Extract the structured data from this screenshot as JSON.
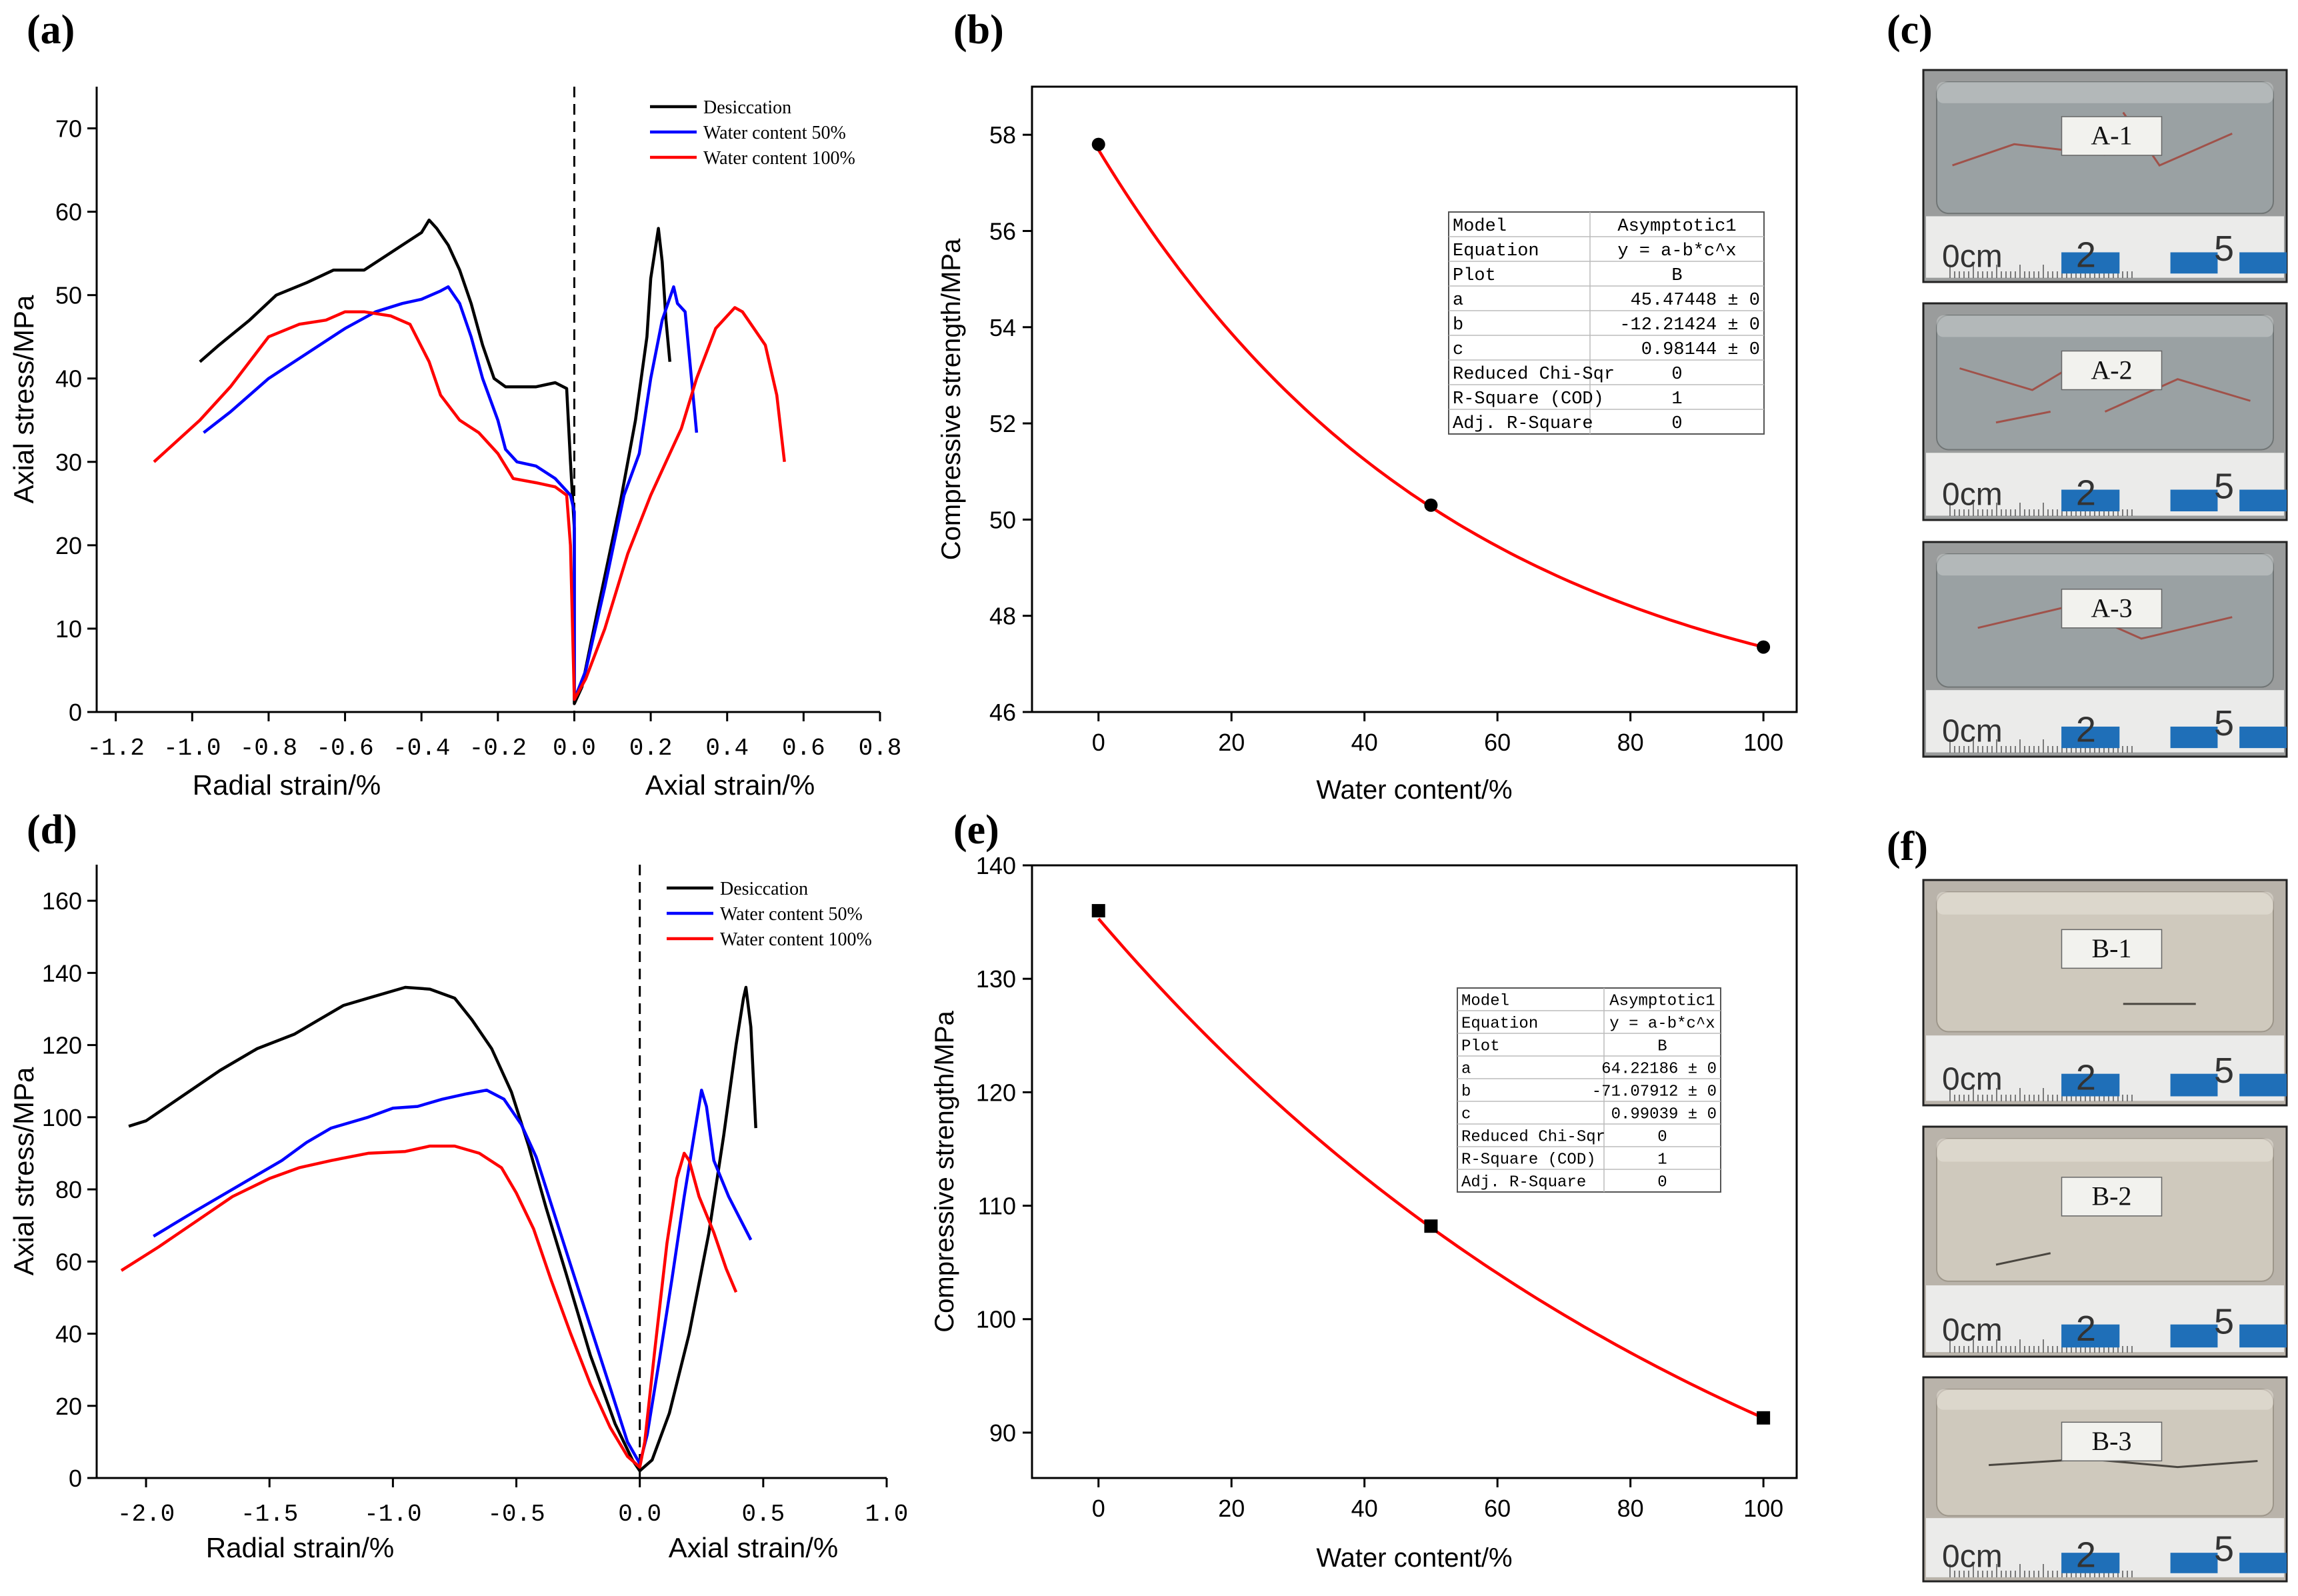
{
  "panels": {
    "a": "(a)",
    "b": "(b)",
    "c": "(c)",
    "d": "(d)",
    "e": "(e)",
    "f": "(f)"
  },
  "colors": {
    "black": "#000000",
    "blue": "#0000ff",
    "red": "#ff0000"
  },
  "photos": {
    "c": [
      {
        "label": "A-1",
        "scale": [
          "0cm",
          "2",
          "5"
        ]
      },
      {
        "label": "A-2",
        "scale": [
          "0cm",
          "2",
          "5"
        ]
      },
      {
        "label": "A-3",
        "scale": [
          "0cm",
          "2",
          "5"
        ]
      }
    ],
    "f": [
      {
        "label": "B-1",
        "scale": [
          "0cm",
          "2",
          "5"
        ]
      },
      {
        "label": "B-2",
        "scale": [
          "0cm",
          "2",
          "5"
        ]
      },
      {
        "label": "B-3",
        "scale": [
          "0cm",
          "2",
          "5"
        ]
      }
    ]
  },
  "chart_data": [
    {
      "id": "a",
      "type": "line",
      "ylabel": "Axial stress/MPa",
      "xlabel_left": "Radial strain/%",
      "xlabel_right": "Axial strain/%",
      "xlim": [
        -1.25,
        0.8
      ],
      "ylim": [
        0,
        75
      ],
      "xticks": [
        -1.2,
        -1.0,
        -0.8,
        -0.6,
        -0.4,
        -0.2,
        0.0,
        0.2,
        0.4,
        0.6,
        0.8
      ],
      "xtick_labels": [
        "-1.2",
        "-1.0",
        "-0.8",
        "-0.6",
        "-0.4",
        "-0.2",
        "0.0",
        "0.2",
        "0.4",
        "0.6",
        "0.8"
      ],
      "yticks": [
        0,
        10,
        20,
        30,
        40,
        50,
        60,
        70
      ],
      "legend": [
        "Desiccation",
        "Water content 50%",
        "Water content 100%"
      ],
      "series": [
        {
          "name": "Desiccation",
          "color": "black",
          "points": [
            [
              -0.98,
              42
            ],
            [
              -0.93,
              44
            ],
            [
              -0.85,
              47
            ],
            [
              -0.78,
              50
            ],
            [
              -0.7,
              51.5
            ],
            [
              -0.63,
              53
            ],
            [
              -0.55,
              53
            ],
            [
              -0.5,
              54.5
            ],
            [
              -0.45,
              56
            ],
            [
              -0.4,
              57.5
            ],
            [
              -0.38,
              59
            ],
            [
              -0.36,
              58
            ],
            [
              -0.33,
              56
            ],
            [
              -0.3,
              53
            ],
            [
              -0.27,
              49
            ],
            [
              -0.24,
              44
            ],
            [
              -0.21,
              40
            ],
            [
              -0.18,
              39
            ],
            [
              -0.1,
              39
            ],
            [
              -0.05,
              39.5
            ],
            [
              -0.02,
              38.8
            ],
            [
              -0.01,
              30
            ],
            [
              0.0,
              22
            ],
            [
              0.0,
              1
            ],
            [
              0.02,
              3
            ],
            [
              0.06,
              12
            ],
            [
              0.12,
              25
            ],
            [
              0.16,
              35
            ],
            [
              0.19,
              45
            ],
            [
              0.2,
              52
            ],
            [
              0.22,
              58
            ],
            [
              0.23,
              54
            ],
            [
              0.24,
              47
            ],
            [
              0.25,
              42
            ]
          ]
        },
        {
          "name": "Water content 50%",
          "color": "blue",
          "points": [
            [
              -0.97,
              33.5
            ],
            [
              -0.9,
              36
            ],
            [
              -0.8,
              40
            ],
            [
              -0.7,
              43
            ],
            [
              -0.6,
              46
            ],
            [
              -0.52,
              48
            ],
            [
              -0.45,
              49
            ],
            [
              -0.4,
              49.5
            ],
            [
              -0.35,
              50.5
            ],
            [
              -0.33,
              51
            ],
            [
              -0.3,
              49
            ],
            [
              -0.27,
              45
            ],
            [
              -0.24,
              40
            ],
            [
              -0.2,
              35
            ],
            [
              -0.18,
              31.5
            ],
            [
              -0.15,
              30
            ],
            [
              -0.1,
              29.5
            ],
            [
              -0.05,
              28
            ],
            [
              -0.01,
              26
            ],
            [
              0.0,
              24
            ],
            [
              0.0,
              1.5
            ],
            [
              0.03,
              5
            ],
            [
              0.08,
              15
            ],
            [
              0.13,
              26
            ],
            [
              0.17,
              31
            ],
            [
              0.2,
              40
            ],
            [
              0.23,
              47
            ],
            [
              0.26,
              51
            ],
            [
              0.27,
              49
            ],
            [
              0.29,
              48
            ],
            [
              0.32,
              33.5
            ]
          ]
        },
        {
          "name": "Water content 100%",
          "color": "red",
          "points": [
            [
              -1.1,
              30
            ],
            [
              -0.98,
              35
            ],
            [
              -0.9,
              39
            ],
            [
              -0.8,
              45
            ],
            [
              -0.72,
              46.5
            ],
            [
              -0.65,
              47
            ],
            [
              -0.6,
              48
            ],
            [
              -0.55,
              48
            ],
            [
              -0.48,
              47.5
            ],
            [
              -0.43,
              46.5
            ],
            [
              -0.38,
              42
            ],
            [
              -0.35,
              38
            ],
            [
              -0.3,
              35
            ],
            [
              -0.25,
              33.5
            ],
            [
              -0.2,
              31
            ],
            [
              -0.16,
              28
            ],
            [
              -0.1,
              27.5
            ],
            [
              -0.05,
              27
            ],
            [
              -0.02,
              26
            ],
            [
              -0.01,
              20
            ],
            [
              0.0,
              1.5
            ],
            [
              0.03,
              4
            ],
            [
              0.08,
              10
            ],
            [
              0.14,
              19
            ],
            [
              0.2,
              26
            ],
            [
              0.24,
              30
            ],
            [
              0.28,
              34
            ],
            [
              0.32,
              40
            ],
            [
              0.37,
              46
            ],
            [
              0.42,
              48.5
            ],
            [
              0.44,
              48
            ],
            [
              0.47,
              46
            ],
            [
              0.5,
              44
            ],
            [
              0.53,
              38
            ],
            [
              0.55,
              30
            ]
          ]
        }
      ]
    },
    {
      "id": "b",
      "type": "scatter",
      "ylabel": "Compressive strength/MPa",
      "xlabel": "Water content/%",
      "xlim": [
        -10,
        105
      ],
      "ylim": [
        46,
        59
      ],
      "xticks": [
        0,
        20,
        40,
        60,
        80,
        100
      ],
      "yticks": [
        46,
        48,
        50,
        52,
        54,
        56,
        58
      ],
      "marker": "circle",
      "points": [
        [
          0,
          57.8
        ],
        [
          50,
          50.3
        ],
        [
          100,
          47.35
        ]
      ],
      "fit": {
        "a": 45.47448,
        "b": -12.21424,
        "c": 0.98144,
        "color": "red"
      },
      "fit_table": [
        [
          "Model",
          "Asymptotic1"
        ],
        [
          "Equation",
          "y = a-b*c^x"
        ],
        [
          "Plot",
          "B"
        ],
        [
          "a",
          "45.47448 ± 0"
        ],
        [
          "b",
          "-12.21424 ± 0"
        ],
        [
          "c",
          "0.98144 ± 0"
        ],
        [
          "Reduced Chi-Sqr",
          "0"
        ],
        [
          "R-Square (COD)",
          "1"
        ],
        [
          "Adj. R-Square",
          "0"
        ]
      ]
    },
    {
      "id": "d",
      "type": "line",
      "ylabel": "Axial stress/MPa",
      "xlabel_left": "Radial strain/%",
      "xlabel_right": "Axial strain/%",
      "xlim": [
        -2.2,
        1.0
      ],
      "ylim": [
        0,
        170
      ],
      "xticks": [
        -2.0,
        -1.5,
        -1.0,
        -0.5,
        0.0,
        0.5,
        1.0
      ],
      "xtick_labels": [
        "-2.0",
        "-1.5",
        "-1.0",
        "-0.5",
        "0.0",
        "0.5",
        "1.0"
      ],
      "yticks": [
        0,
        20,
        40,
        60,
        80,
        100,
        120,
        140,
        160
      ],
      "legend": [
        "Desiccation",
        "Water content 50%",
        "Water content 100%"
      ],
      "series": [
        {
          "name": "Desiccation",
          "color": "black",
          "points": [
            [
              -2.07,
              97.5
            ],
            [
              -2.0,
              99
            ],
            [
              -1.85,
              106
            ],
            [
              -1.7,
              113
            ],
            [
              -1.55,
              119
            ],
            [
              -1.4,
              123
            ],
            [
              -1.3,
              127
            ],
            [
              -1.2,
              131
            ],
            [
              -1.1,
              133
            ],
            [
              -1.0,
              135
            ],
            [
              -0.95,
              136
            ],
            [
              -0.85,
              135.5
            ],
            [
              -0.75,
              133
            ],
            [
              -0.68,
              127
            ],
            [
              -0.6,
              119
            ],
            [
              -0.52,
              107
            ],
            [
              -0.45,
              92
            ],
            [
              -0.38,
              75
            ],
            [
              -0.3,
              57
            ],
            [
              -0.2,
              34
            ],
            [
              -0.1,
              15
            ],
            [
              -0.03,
              5
            ],
            [
              0.0,
              2
            ],
            [
              0.05,
              5
            ],
            [
              0.12,
              18
            ],
            [
              0.2,
              40
            ],
            [
              0.28,
              68
            ],
            [
              0.34,
              95
            ],
            [
              0.39,
              120
            ],
            [
              0.42,
              133
            ],
            [
              0.43,
              136
            ],
            [
              0.45,
              125
            ],
            [
              0.47,
              97
            ]
          ]
        },
        {
          "name": "Water content 50%",
          "color": "blue",
          "points": [
            [
              -1.97,
              67
            ],
            [
              -1.8,
              74
            ],
            [
              -1.6,
              82
            ],
            [
              -1.45,
              88
            ],
            [
              -1.35,
              93
            ],
            [
              -1.25,
              97
            ],
            [
              -1.1,
              100
            ],
            [
              -1.0,
              102.5
            ],
            [
              -0.9,
              103
            ],
            [
              -0.8,
              105
            ],
            [
              -0.7,
              106.5
            ],
            [
              -0.62,
              107.5
            ],
            [
              -0.55,
              105
            ],
            [
              -0.48,
              98
            ],
            [
              -0.42,
              89
            ],
            [
              -0.35,
              74
            ],
            [
              -0.28,
              59
            ],
            [
              -0.2,
              42
            ],
            [
              -0.12,
              25
            ],
            [
              -0.05,
              10
            ],
            [
              0.0,
              4
            ],
            [
              0.03,
              12
            ],
            [
              0.08,
              33
            ],
            [
              0.13,
              55
            ],
            [
              0.18,
              78
            ],
            [
              0.22,
              95
            ],
            [
              0.25,
              107.5
            ],
            [
              0.27,
              103
            ],
            [
              0.3,
              88
            ],
            [
              0.36,
              78
            ],
            [
              0.42,
              70
            ],
            [
              0.45,
              66
            ]
          ]
        },
        {
          "name": "Water content 100%",
          "color": "red",
          "points": [
            [
              -2.1,
              57.5
            ],
            [
              -1.95,
              64
            ],
            [
              -1.8,
              71
            ],
            [
              -1.65,
              78
            ],
            [
              -1.5,
              83
            ],
            [
              -1.38,
              86
            ],
            [
              -1.25,
              88
            ],
            [
              -1.1,
              90
            ],
            [
              -0.95,
              90.5
            ],
            [
              -0.85,
              92
            ],
            [
              -0.75,
              92
            ],
            [
              -0.65,
              90
            ],
            [
              -0.56,
              86
            ],
            [
              -0.5,
              79
            ],
            [
              -0.43,
              69
            ],
            [
              -0.36,
              55
            ],
            [
              -0.28,
              40
            ],
            [
              -0.2,
              26
            ],
            [
              -0.12,
              14
            ],
            [
              -0.05,
              6
            ],
            [
              0.0,
              3
            ],
            [
              0.02,
              10
            ],
            [
              0.06,
              35
            ],
            [
              0.11,
              65
            ],
            [
              0.15,
              83
            ],
            [
              0.18,
              90
            ],
            [
              0.2,
              88
            ],
            [
              0.24,
              78
            ],
            [
              0.3,
              68
            ],
            [
              0.35,
              58
            ],
            [
              0.39,
              51.5
            ]
          ]
        }
      ]
    },
    {
      "id": "e",
      "type": "scatter",
      "ylabel": "Compressive strength/MPa",
      "xlabel": "Water content/%",
      "xlim": [
        -10,
        105
      ],
      "ylim": [
        86,
        140
      ],
      "xticks": [
        0,
        20,
        40,
        60,
        80,
        100
      ],
      "yticks": [
        90,
        100,
        110,
        120,
        130,
        140
      ],
      "marker": "square",
      "points": [
        [
          0,
          136
        ],
        [
          50,
          108.2
        ],
        [
          100,
          91.3
        ]
      ],
      "fit": {
        "a": 64.22186,
        "b": -71.07912,
        "c": 0.99039,
        "color": "red"
      },
      "fit_table": [
        [
          "Model",
          "Asymptotic1"
        ],
        [
          "Equation",
          "y = a-b*c^x"
        ],
        [
          "Plot",
          "B"
        ],
        [
          "a",
          "64.22186 ± 0"
        ],
        [
          "b",
          "-71.07912 ± 0"
        ],
        [
          "c",
          "0.99039 ± 0"
        ],
        [
          "Reduced Chi-Sqr",
          "0"
        ],
        [
          "R-Square (COD)",
          "1"
        ],
        [
          "Adj. R-Square",
          "0"
        ]
      ]
    }
  ]
}
